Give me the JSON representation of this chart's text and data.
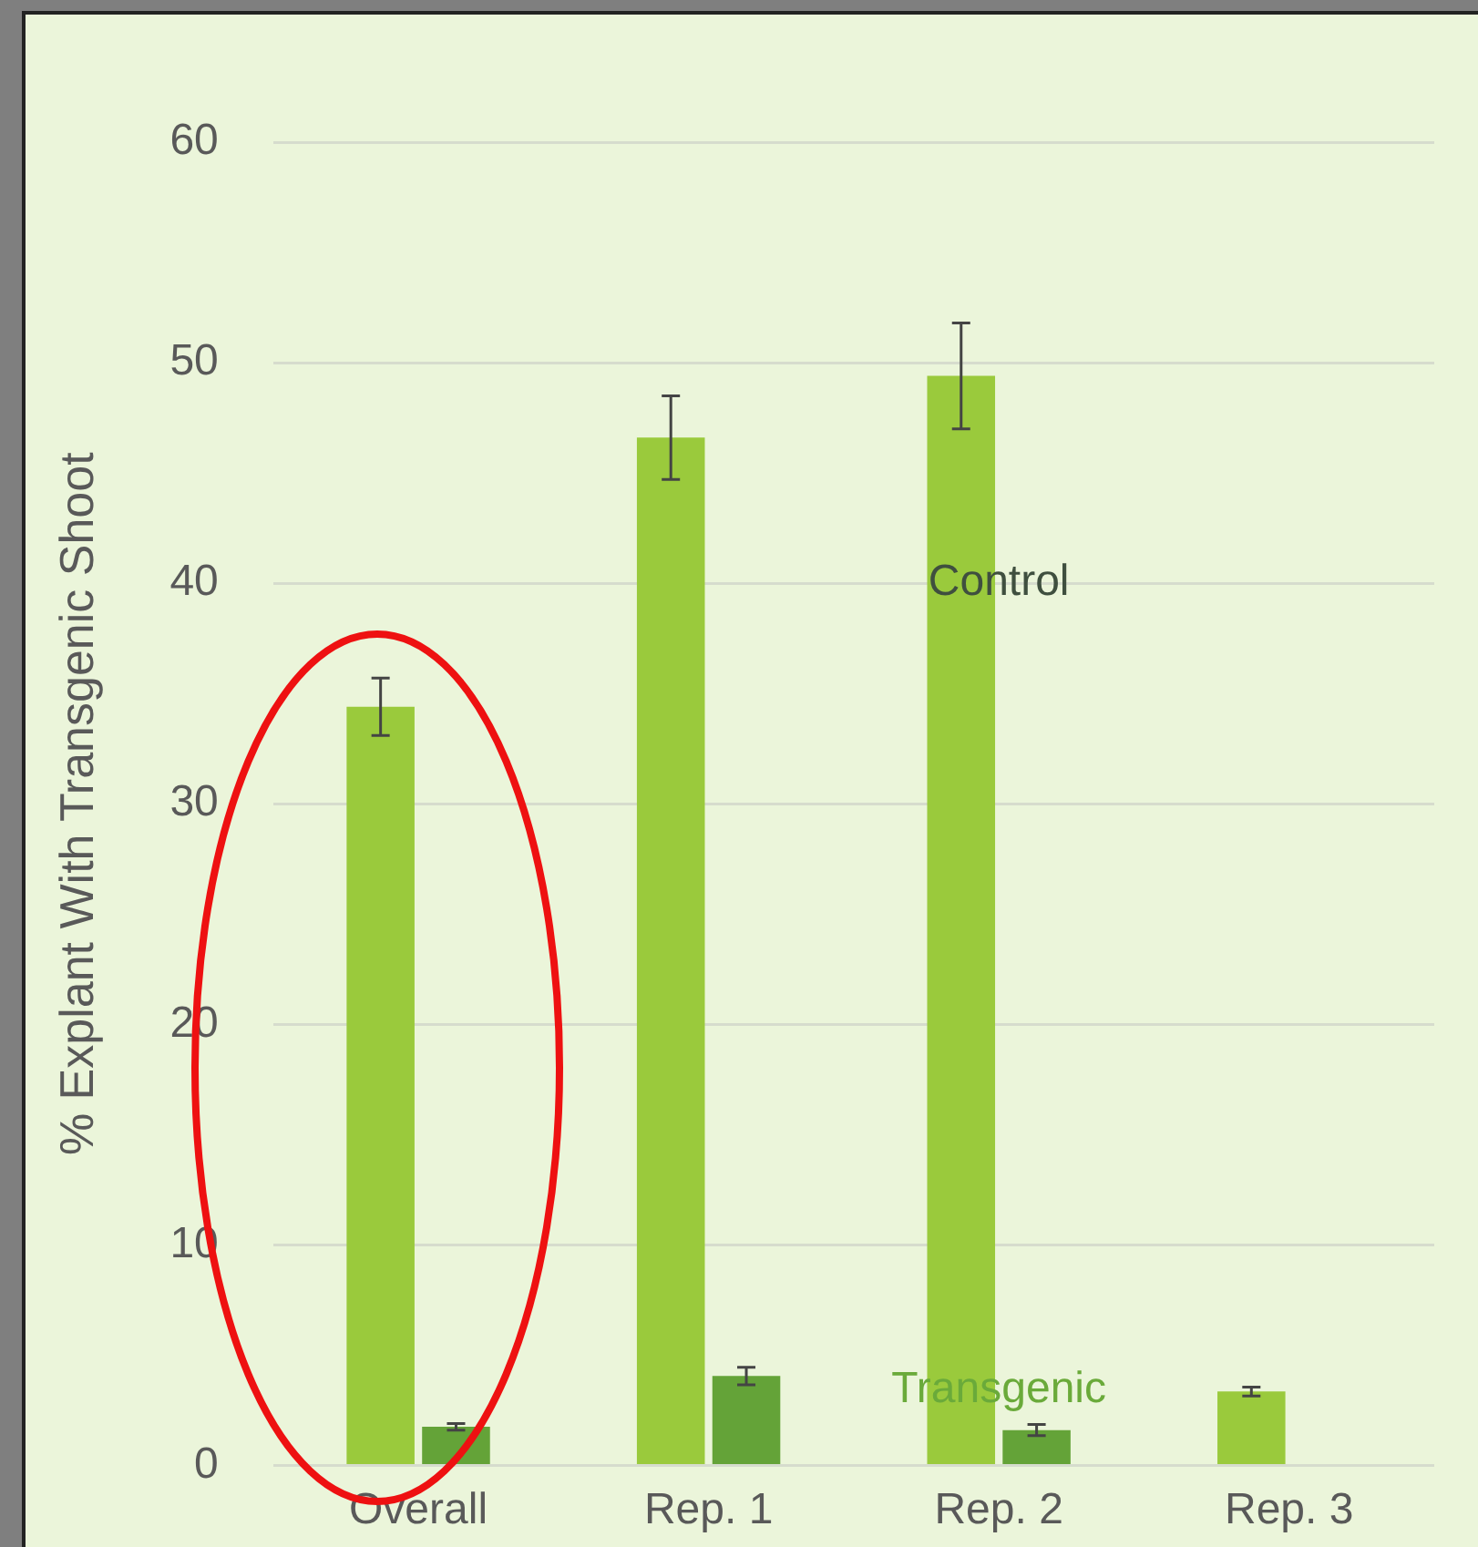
{
  "chart_data": {
    "type": "bar",
    "ylabel": "% Explant With Transgenic Shoot",
    "categories": [
      "Overall",
      "Rep. 1",
      "Rep. 2",
      "Rep. 3"
    ],
    "series": [
      {
        "color": "#9aca3c",
        "values": [
          34.4,
          46.6,
          49.4,
          3.35
        ],
        "errors": [
          1.3,
          1.9,
          2.4,
          0.2
        ]
      },
      {
        "color": "#64a338",
        "values": [
          1.75,
          4.05,
          1.6,
          0
        ],
        "errors": [
          0.15,
          0.4,
          0.25,
          null
        ]
      }
    ],
    "ylim": [
      0,
      60
    ],
    "yticks": [
      0,
      10,
      20,
      30,
      40,
      50,
      60
    ],
    "grid": "y",
    "legend": false,
    "annotations": [
      {
        "text": "Control",
        "x": "Rep. 2",
        "y": 40
      },
      {
        "text": "Transgenic",
        "x": "Rep. 2",
        "y": 3.4
      }
    ]
  }
}
